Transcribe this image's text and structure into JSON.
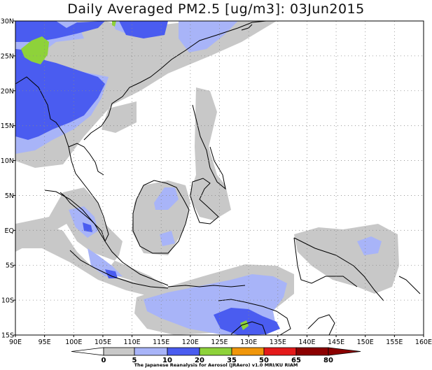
{
  "title": "Daily Averaged PM2.5 [ug/m3]: 03Jun2015",
  "x_ticks": [
    "90E",
    "95E",
    "100E",
    "105E",
    "110E",
    "115E",
    "120E",
    "125E",
    "130E",
    "135E",
    "140E",
    "145E",
    "150E",
    "155E",
    "160E"
  ],
  "y_ticks": [
    "30N",
    "25N",
    "20N",
    "15N",
    "10N",
    "5N",
    "EQ",
    "5S",
    "10S",
    "15S"
  ],
  "colorbar": {
    "labels": [
      "0",
      "5",
      "10",
      "20",
      "35",
      "50",
      "65",
      "80"
    ],
    "colors": [
      "#ffffff",
      "#c8c8c8",
      "#a8b4f8",
      "#4a5cf0",
      "#8ed23a",
      "#f0960a",
      "#e41a1a",
      "#8b0000"
    ]
  },
  "credit": "The Japanese Reanalysis for Aerosol (JRAero) v1.0 MRI/KU RIAM"
}
